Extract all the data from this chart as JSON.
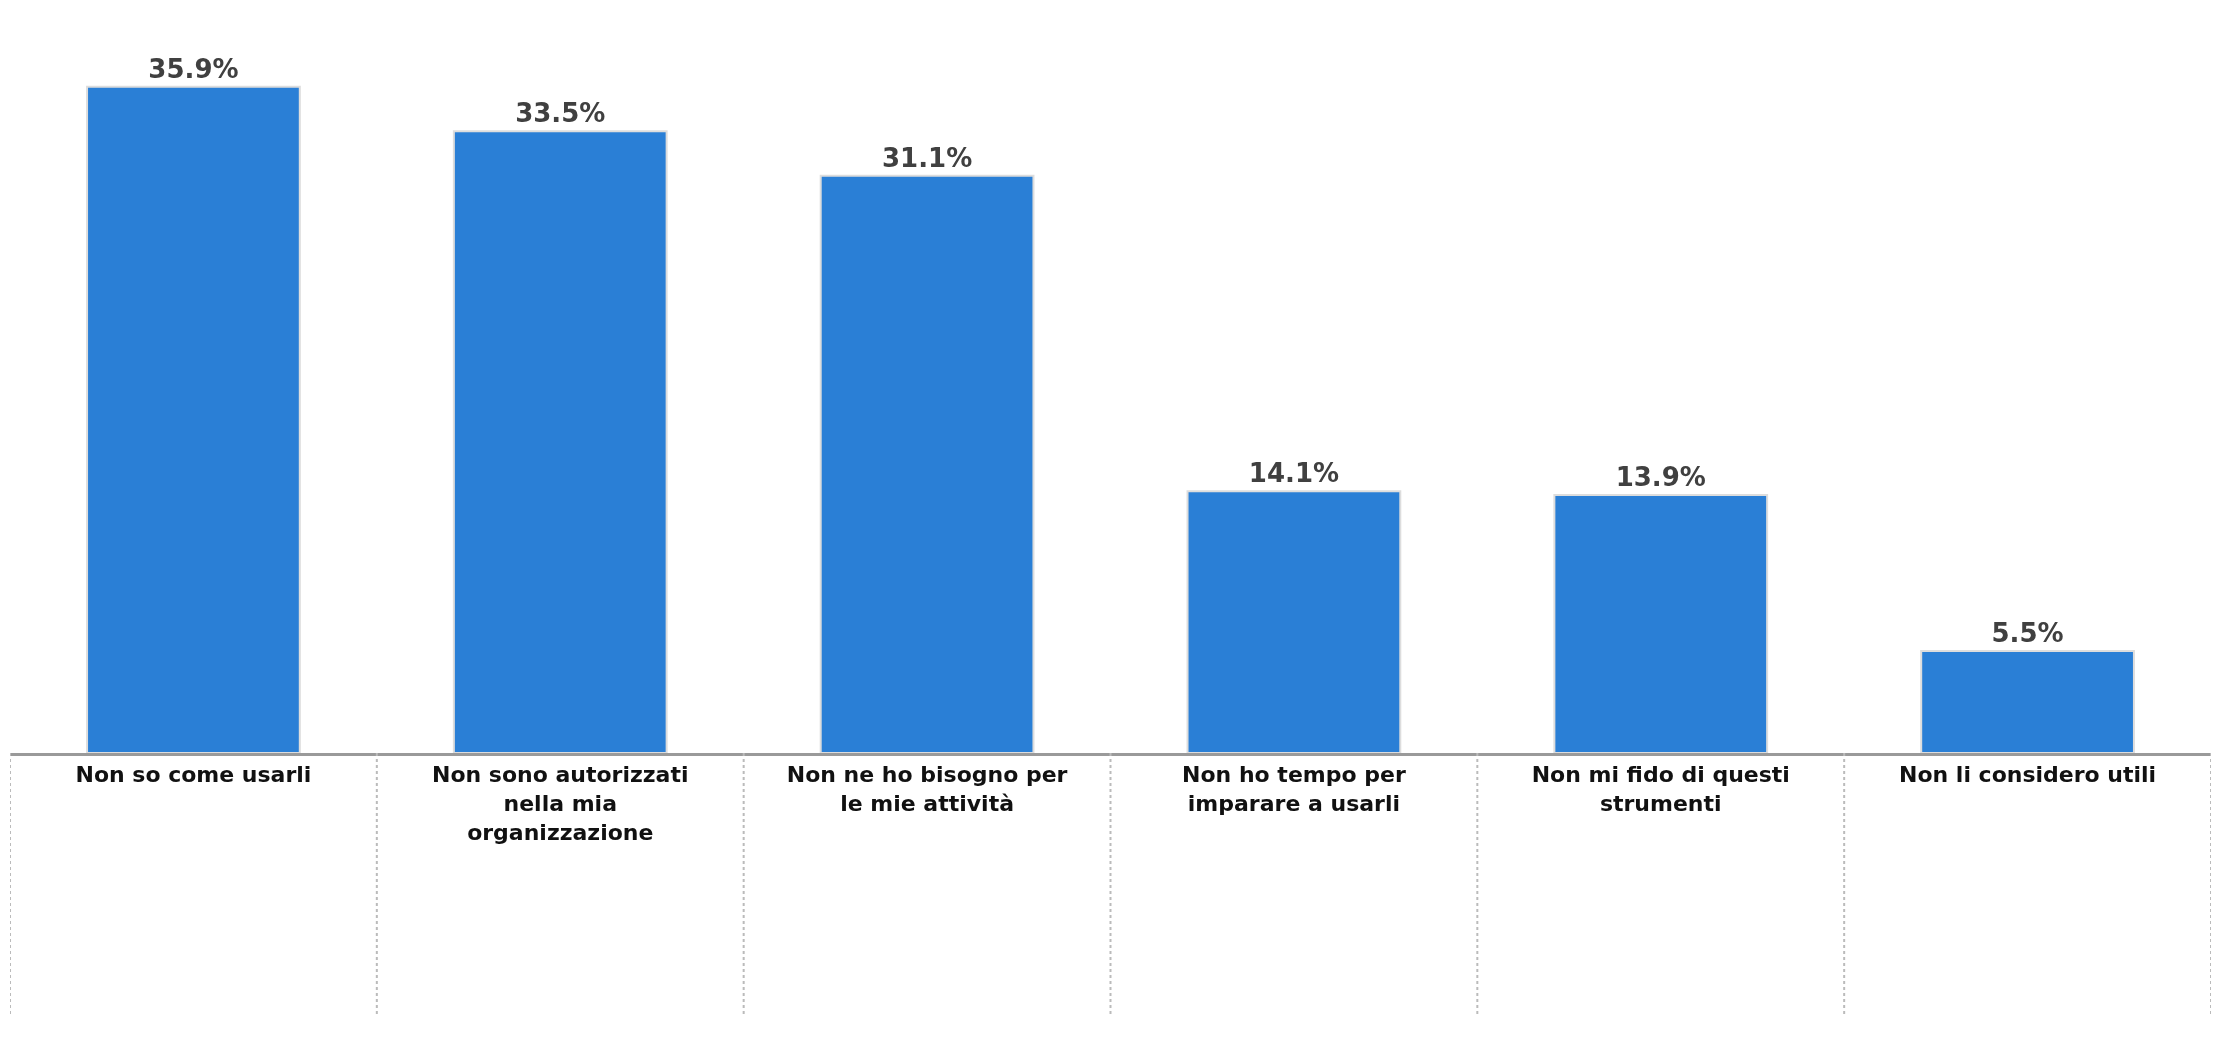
{
  "chart_data": {
    "type": "bar",
    "categories": [
      "Non so come usarli",
      "Non sono autorizzati\nnella mia\norganizzazione",
      "Non ne ho bisogno per\nle mie attività",
      "Non ho tempo per\nimparare a usarli",
      "Non mi fido di questi\nstrumenti",
      "Non li considero utili"
    ],
    "values": [
      35.9,
      33.5,
      31.1,
      14.1,
      13.9,
      5.5
    ],
    "value_labels": [
      "35.9%",
      "33.5%",
      "31.1%",
      "14.1%",
      "13.9%",
      "5.5%"
    ],
    "color": "#2a7fd6"
  }
}
